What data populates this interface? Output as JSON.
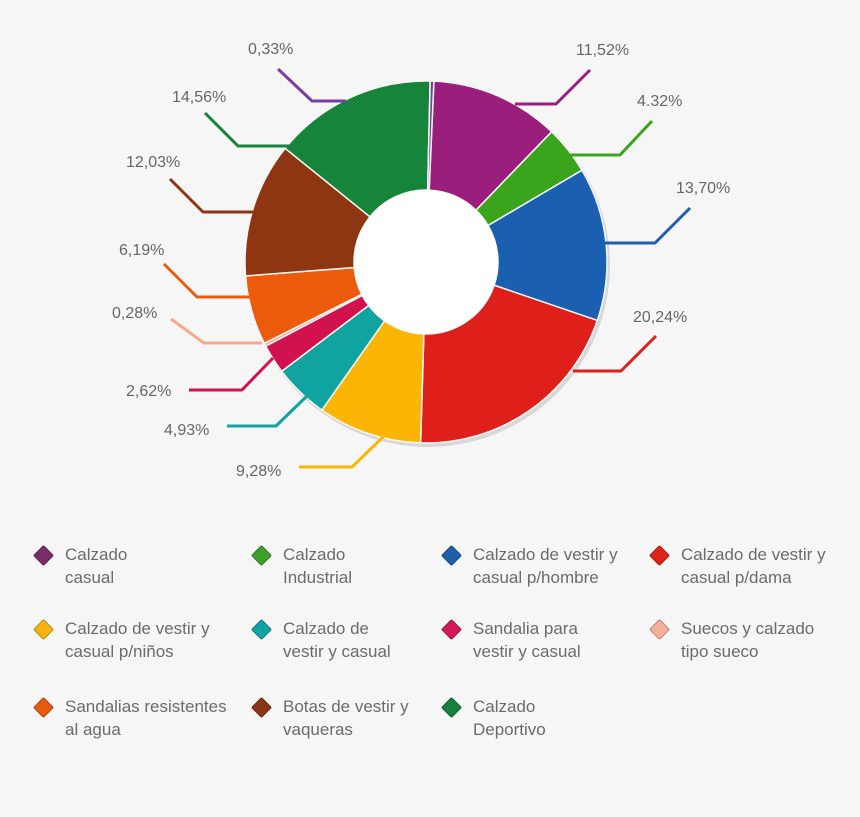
{
  "chart_data": {
    "type": "pie",
    "variant": "donut",
    "title": "",
    "legend_placement": "bottom",
    "slices": [
      {
        "name": "Calzado\ncasual",
        "label": "11,52%",
        "value": 11.52,
        "color": "#9a1f7d"
      },
      {
        "name": "Calzado\nIndustrial",
        "label": "4.32%",
        "value": 4.32,
        "color": "#3aa51c"
      },
      {
        "name": "Calzado de vestir y\ncasual p/hombre",
        "label": "13,70%",
        "value": 13.7,
        "color": "#1a5fb0"
      },
      {
        "name": "Calzado de vestir y\ncasual p/dama",
        "label": "20,24%",
        "value": 20.24,
        "color": "#df1f1a"
      },
      {
        "name": "Calzado de vestir y\ncasual p/niños",
        "label": "9,28%",
        "value": 9.28,
        "color": "#fbb505"
      },
      {
        "name": "Calzado de\nvestir y casual",
        "label": "4,93%",
        "value": 4.93,
        "color": "#10a3a0"
      },
      {
        "name": "Sandalia para\nvestir y casual",
        "label": "2,62%",
        "value": 2.62,
        "color": "#d2124f"
      },
      {
        "name": "Suecos y calzado\ntipo sueco",
        "label": "0,28%",
        "value": 0.28,
        "color": "#f6a98c"
      },
      {
        "name": "Sandalias resistentes\nal agua",
        "label": "6,19%",
        "value": 6.19,
        "color": "#ec5a0c"
      },
      {
        "name": "Botas de vestir y\nvaqueras",
        "label": "12,03%",
        "value": 12.03,
        "color": "#8e3512"
      },
      {
        "name": "Calzado\nDeportivo",
        "label": "14,56%",
        "value": 14.56,
        "color": "#16843a"
      },
      {
        "name": "",
        "label": "0,33%",
        "value": 0.33,
        "color": "#7a3fa0"
      }
    ],
    "legend": [
      {
        "label": "Calzado\ncasual",
        "color": "#7b2a6a"
      },
      {
        "label": "Calzado\nIndustrial",
        "color": "#3ea02a"
      },
      {
        "label": "Calzado de vestir y\ncasual p/hombre",
        "color": "#1f5ea8"
      },
      {
        "label": "Calzado de vestir y\ncasual p/dama",
        "color": "#dc2418"
      },
      {
        "label": "Calzado de vestir y\ncasual p/niños",
        "color": "#f7b410"
      },
      {
        "label": "Calzado de\nvestir y casual",
        "color": "#12a2a0"
      },
      {
        "label": "Sandalia para\nvestir y casual",
        "color": "#d11a56"
      },
      {
        "label": "Suecos y calzado\ntipo sueco",
        "color": "#f7b09a"
      },
      {
        "label": "Sandalias resistentes\nal agua",
        "color": "#e85a10"
      },
      {
        "label": "Botas de vestir y\nvaqueras",
        "color": "#8a3418"
      },
      {
        "label": "Calzado\nDeportivo",
        "color": "#15813c"
      }
    ]
  }
}
